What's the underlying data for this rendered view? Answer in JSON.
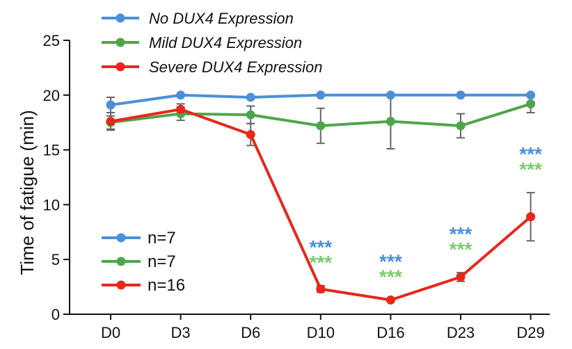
{
  "chart_data": {
    "type": "line",
    "title": "",
    "xlabel": "",
    "ylabel": "Time of fatigue (min)",
    "ylim": [
      0,
      25
    ],
    "yticks": [
      0,
      5,
      10,
      15,
      20,
      25
    ],
    "categories": [
      "D0",
      "D3",
      "D6",
      "D10",
      "D16",
      "D23",
      "D29"
    ],
    "series": [
      {
        "name": "No DUX4 Expression",
        "n_label": "n=7",
        "color": "#4a90d9",
        "values": [
          19.1,
          20.0,
          19.8,
          20.0,
          20.0,
          20.0,
          20.0
        ],
        "errors": [
          0.7,
          0,
          0,
          0,
          0,
          0,
          0
        ]
      },
      {
        "name": "Mild DUX4 Expression",
        "n_label": "n=7",
        "color": "#4ea64a",
        "values": [
          17.5,
          18.3,
          18.2,
          17.2,
          17.6,
          17.2,
          19.2
        ],
        "errors": [
          0.6,
          0.6,
          0.8,
          1.6,
          2.5,
          1.1,
          0.8
        ]
      },
      {
        "name": "Severe DUX4 Expression",
        "n_label": "n=16",
        "color": "#e8271b",
        "values": [
          17.6,
          18.7,
          16.4,
          2.3,
          1.3,
          3.4,
          8.9
        ],
        "errors": [
          0.8,
          0.5,
          1.0,
          0.3,
          0,
          0.4,
          2.2
        ]
      }
    ],
    "annotations": [
      {
        "category": "D10",
        "text": "***",
        "color": "#4a90d9",
        "row": 0
      },
      {
        "category": "D10",
        "text": "***",
        "color": "#7ccb6f",
        "row": 1
      },
      {
        "category": "D16",
        "text": "***",
        "color": "#4a90d9",
        "row": 0
      },
      {
        "category": "D16",
        "text": "***",
        "color": "#7ccb6f",
        "row": 1
      },
      {
        "category": "D23",
        "text": "***",
        "color": "#4a90d9",
        "row": 0
      },
      {
        "category": "D23",
        "text": "***",
        "color": "#7ccb6f",
        "row": 1
      },
      {
        "category": "D29",
        "text": "***",
        "color": "#4a90d9",
        "row": 0
      },
      {
        "category": "D29",
        "text": "***",
        "color": "#7ccb6f",
        "row": 1
      }
    ]
  }
}
